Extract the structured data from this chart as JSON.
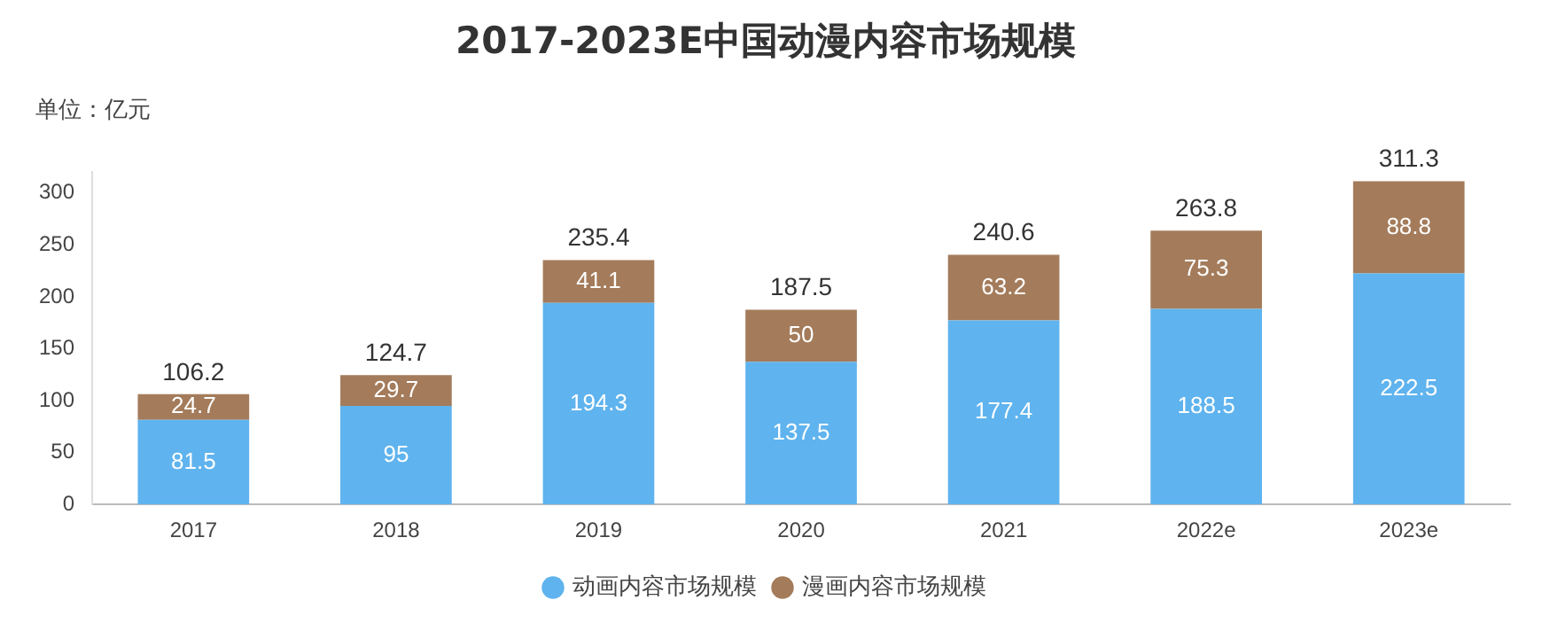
{
  "chart_data": {
    "type": "bar",
    "title": "2017-2023E中国动漫内容市场规模",
    "annotations": [
      "单位：亿元"
    ],
    "categories": [
      "2017",
      "2018",
      "2019",
      "2020",
      "2021",
      "2022e",
      "2023e"
    ],
    "series": [
      {
        "name": "动画内容市场规模",
        "color": "#5fb3ee",
        "values": [
          81.5,
          95,
          194.3,
          137.5,
          177.4,
          188.5,
          222.5
        ]
      },
      {
        "name": "漫画内容市场规模",
        "color": "#a47c5b",
        "values": [
          24.7,
          29.7,
          41.1,
          50,
          63.2,
          75.3,
          88.8
        ]
      }
    ],
    "stacked": true,
    "data_labels": true,
    "totals": [
      "106.2",
      "124.7",
      "235.4",
      "187.5",
      "240.6",
      "263.8",
      "311.3"
    ],
    "ylim": [
      0,
      320
    ],
    "yticks": [
      0,
      50,
      100,
      150,
      200,
      250,
      300
    ],
    "grid": false,
    "legend": "bottom"
  }
}
